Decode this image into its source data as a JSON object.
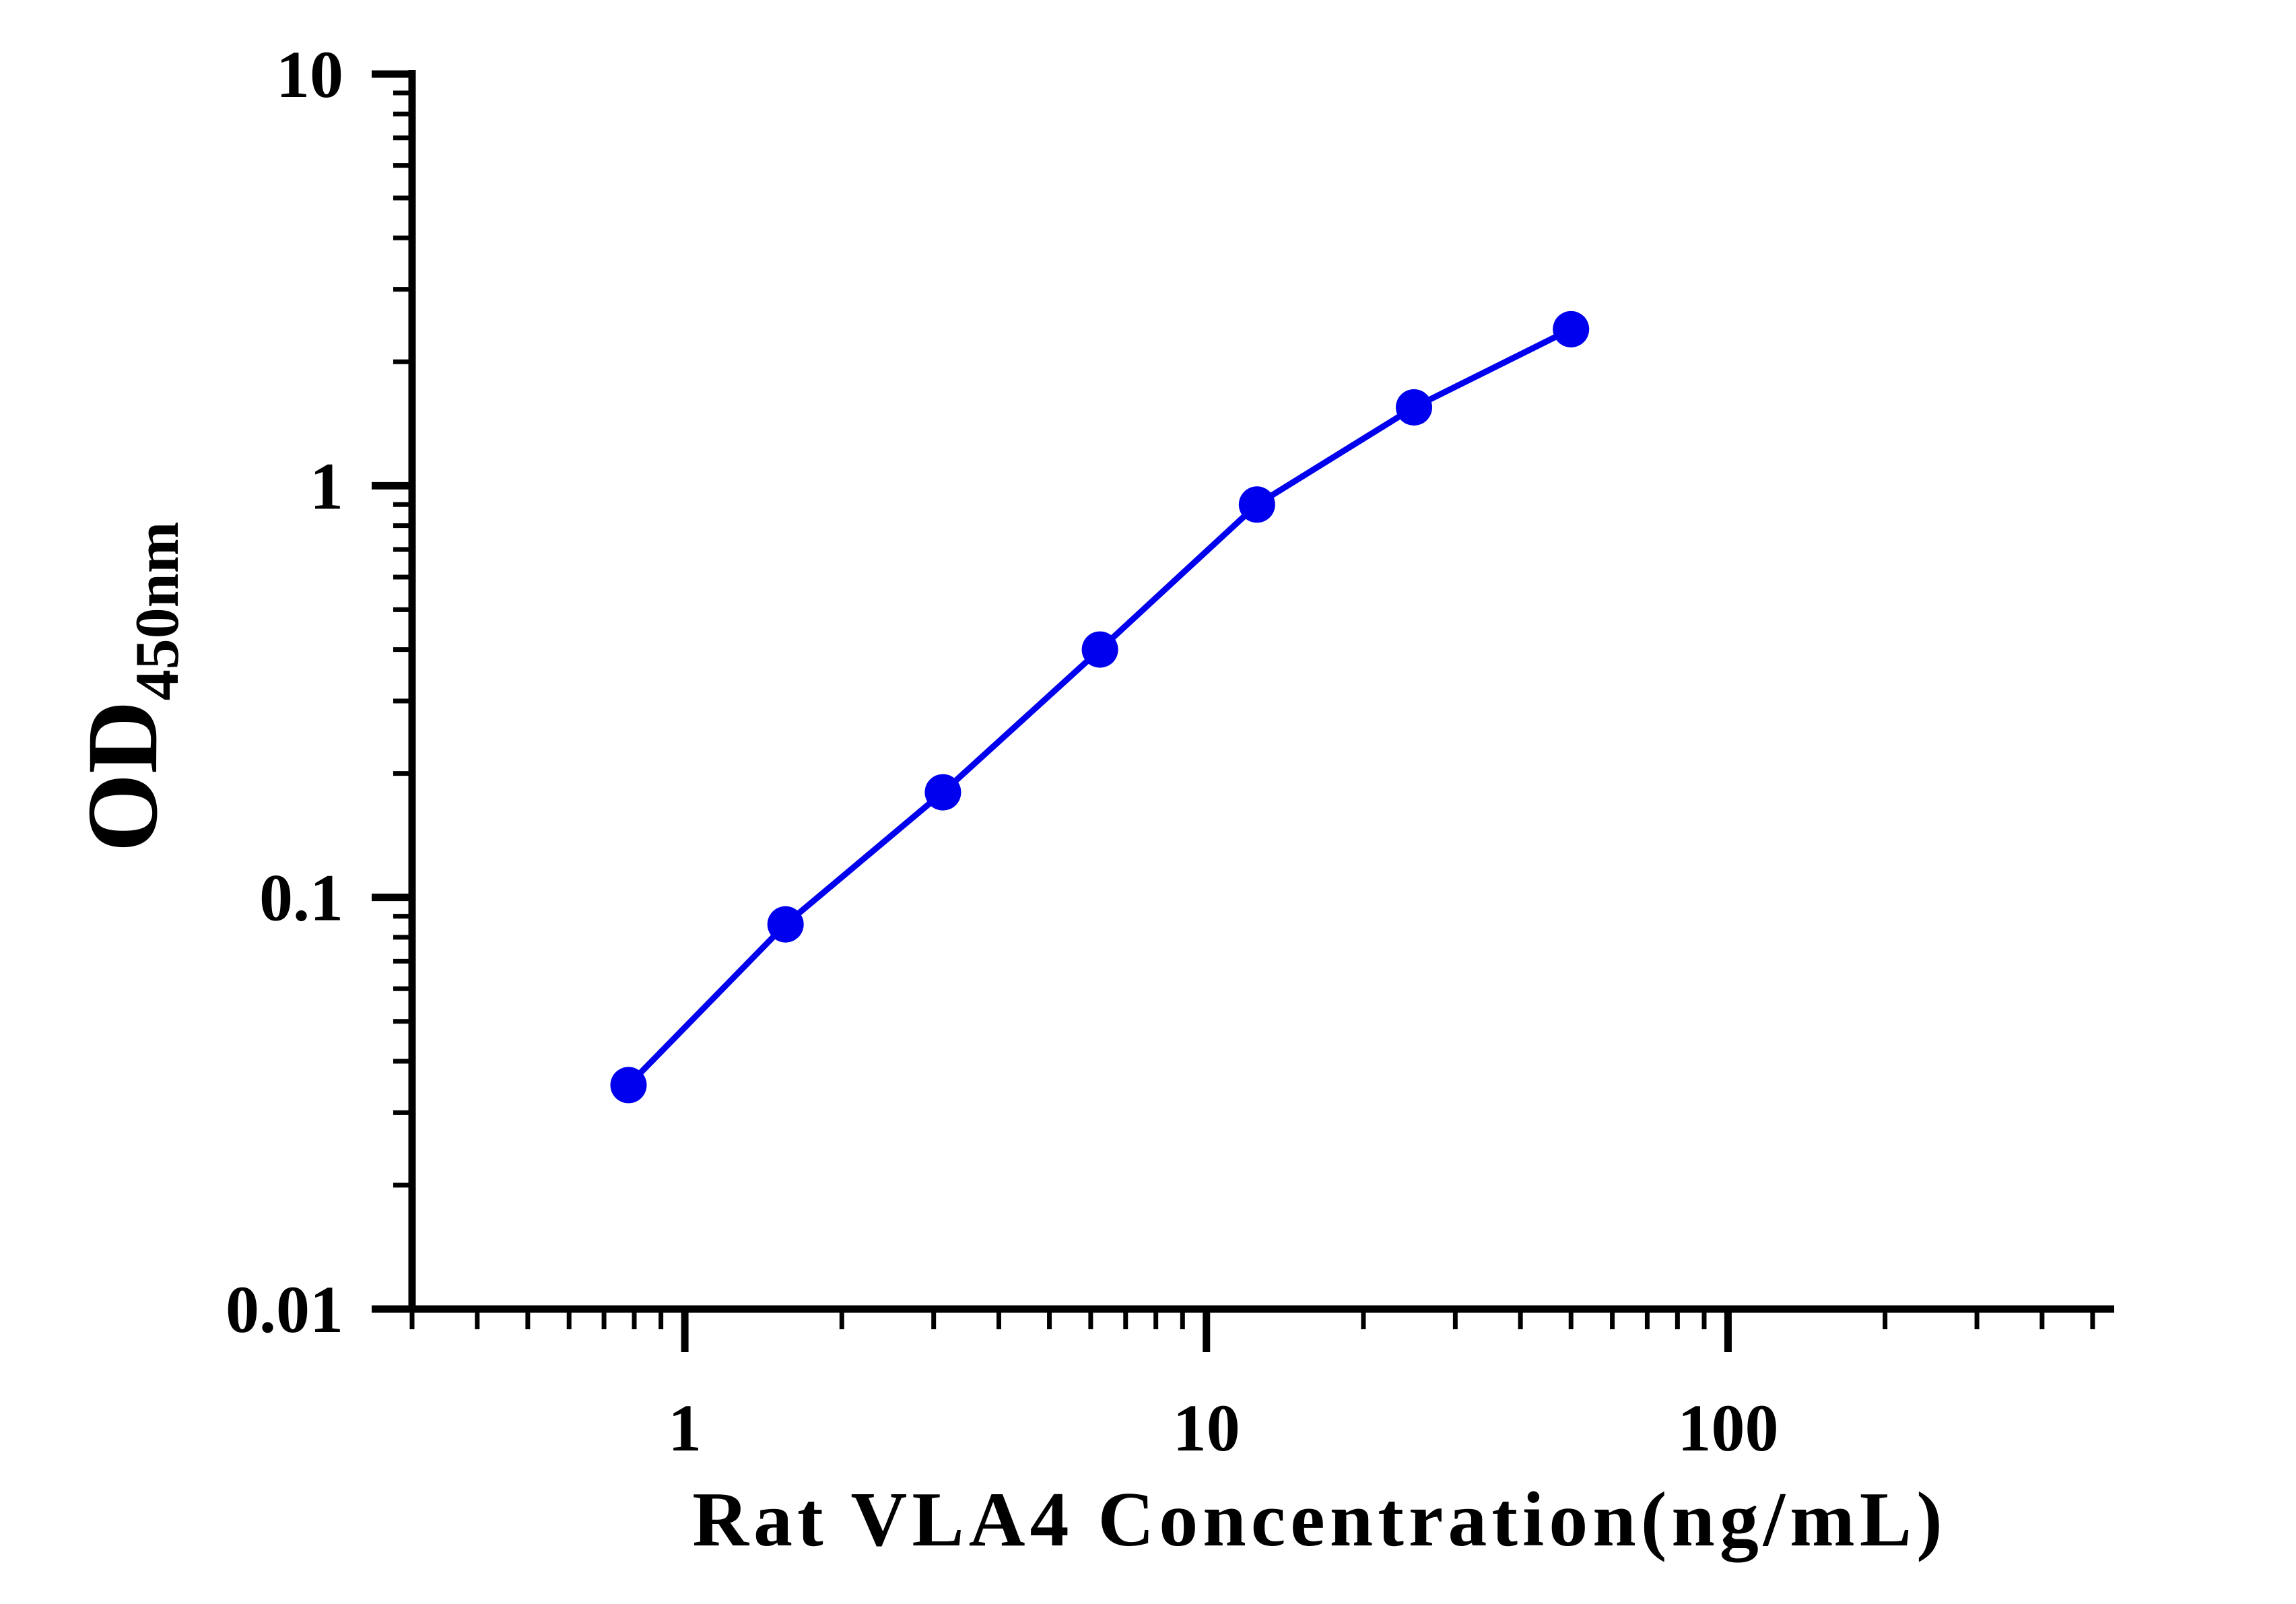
{
  "chart_data": {
    "type": "line",
    "x_scale": "log",
    "y_scale": "log",
    "xlim": [
      0.3,
      550
    ],
    "ylim": [
      0.01,
      10
    ],
    "x_ticks": [
      {
        "value": 1,
        "label": "1"
      },
      {
        "value": 10,
        "label": "10"
      },
      {
        "value": 100,
        "label": "100"
      }
    ],
    "y_ticks": [
      {
        "value": 0.01,
        "label": "0.01"
      },
      {
        "value": 0.1,
        "label": "0.1"
      },
      {
        "value": 1,
        "label": "1"
      },
      {
        "value": 10,
        "label": "10"
      }
    ],
    "xlabel": "Rat VLA4 Concentration(ng/mL)",
    "ylabel": "OD",
    "ylabel_subscript": "450nm",
    "grid": false,
    "legend": "none",
    "series": [
      {
        "color": "#0000ee",
        "marker": "circle",
        "x": [
          0.78,
          1.56,
          3.125,
          6.25,
          12.5,
          25,
          50
        ],
        "y": [
          0.035,
          0.086,
          0.18,
          0.4,
          0.9,
          1.55,
          2.4
        ]
      }
    ]
  }
}
